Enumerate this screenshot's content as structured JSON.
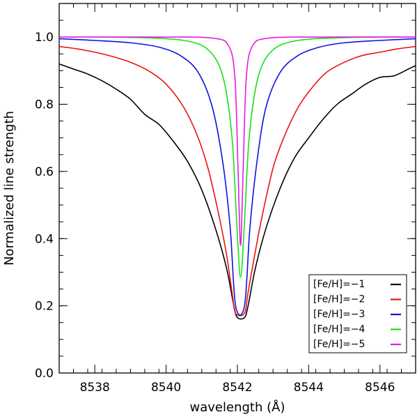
{
  "chart_data": {
    "type": "line",
    "xlabel": "wavelength (Å)",
    "ylabel": "Normalized line strength",
    "xlim": [
      8537.0,
      8547.0
    ],
    "ylim": [
      0.0,
      1.1
    ],
    "x_ticks": [
      8538,
      8540,
      8542,
      8544,
      8546
    ],
    "x_tick_labels": [
      "8538",
      "8540",
      "8542",
      "8544",
      "8546"
    ],
    "y_ticks": [
      0.0,
      0.2,
      0.4,
      0.6,
      0.8,
      1.0
    ],
    "y_tick_labels": [
      "0.0",
      "0.2",
      "0.4",
      "0.6",
      "0.8",
      "1.0"
    ],
    "line_center": 8542.09,
    "legend_position": "lower-right",
    "grid": false,
    "series": [
      {
        "name": "[Fe/H]=−1",
        "color": "#000000",
        "x": [
          8537.0,
          8537.4,
          8537.8,
          8538.2,
          8538.6,
          8539.0,
          8539.4,
          8539.8,
          8540.2,
          8540.6,
          8541.0,
          8541.4,
          8541.7,
          8541.9,
          8542.0,
          8542.2,
          8542.3,
          8542.5,
          8542.8,
          8543.2,
          8543.6,
          8544.0,
          8544.4,
          8544.8,
          8545.2,
          8545.6,
          8546.0,
          8546.4,
          8546.8,
          8547.0
        ],
        "y": [
          0.92,
          0.905,
          0.89,
          0.87,
          0.845,
          0.815,
          0.77,
          0.74,
          0.69,
          0.63,
          0.545,
          0.425,
          0.31,
          0.2,
          0.165,
          0.165,
          0.2,
          0.31,
          0.43,
          0.55,
          0.64,
          0.7,
          0.755,
          0.8,
          0.83,
          0.86,
          0.88,
          0.885,
          0.905,
          0.915
        ]
      },
      {
        "name": "[Fe/H]=−2",
        "color": "#e8130e",
        "x": [
          8537.0,
          8537.5,
          8538.0,
          8538.5,
          8539.0,
          8539.5,
          8540.0,
          8540.5,
          8540.9,
          8541.2,
          8541.5,
          8541.7,
          8541.85,
          8541.95,
          8542.2,
          8542.3,
          8542.5,
          8542.7,
          8543.0,
          8543.3,
          8543.7,
          8544.1,
          8544.5,
          8545.0,
          8545.5,
          8546.0,
          8546.5,
          8547.0
        ],
        "y": [
          0.972,
          0.965,
          0.955,
          0.942,
          0.925,
          0.9,
          0.86,
          0.79,
          0.7,
          0.6,
          0.46,
          0.35,
          0.24,
          0.178,
          0.178,
          0.24,
          0.36,
          0.47,
          0.61,
          0.7,
          0.79,
          0.85,
          0.895,
          0.925,
          0.945,
          0.955,
          0.965,
          0.972
        ]
      },
      {
        "name": "[Fe/H]=−3",
        "color": "#1010e0",
        "x": [
          8537.0,
          8538.0,
          8539.0,
          8539.8,
          8540.4,
          8540.9,
          8541.3,
          8541.6,
          8541.8,
          8541.95,
          8542.2,
          8542.35,
          8542.55,
          8542.8,
          8543.2,
          8543.7,
          8544.3,
          8545.0,
          8546.0,
          8547.0
        ],
        "y": [
          0.995,
          0.99,
          0.983,
          0.97,
          0.945,
          0.895,
          0.79,
          0.62,
          0.43,
          0.2,
          0.2,
          0.43,
          0.63,
          0.79,
          0.895,
          0.945,
          0.97,
          0.983,
          0.99,
          0.995
        ]
      },
      {
        "name": "[Fe/H]=−4",
        "color": "#16e016",
        "x": [
          8537.0,
          8539.0,
          8540.5,
          8541.2,
          8541.6,
          8541.85,
          8541.98,
          8542.09,
          8542.2,
          8542.33,
          8542.58,
          8542.98,
          8543.7,
          8545.2,
          8547.0
        ],
        "y": [
          1.0,
          0.999,
          0.99,
          0.96,
          0.88,
          0.7,
          0.45,
          0.285,
          0.45,
          0.7,
          0.88,
          0.96,
          0.99,
          0.999,
          1.0
        ]
      },
      {
        "name": "[Fe/H]=−5",
        "color": "#e818e8",
        "x": [
          8537.0,
          8540.0,
          8541.3,
          8541.75,
          8541.93,
          8542.02,
          8542.09,
          8542.16,
          8542.25,
          8542.43,
          8542.88,
          8544.2,
          8547.0
        ],
        "y": [
          1.0,
          1.0,
          0.997,
          0.975,
          0.88,
          0.6,
          0.38,
          0.6,
          0.88,
          0.975,
          0.997,
          1.0,
          1.0
        ]
      }
    ]
  }
}
